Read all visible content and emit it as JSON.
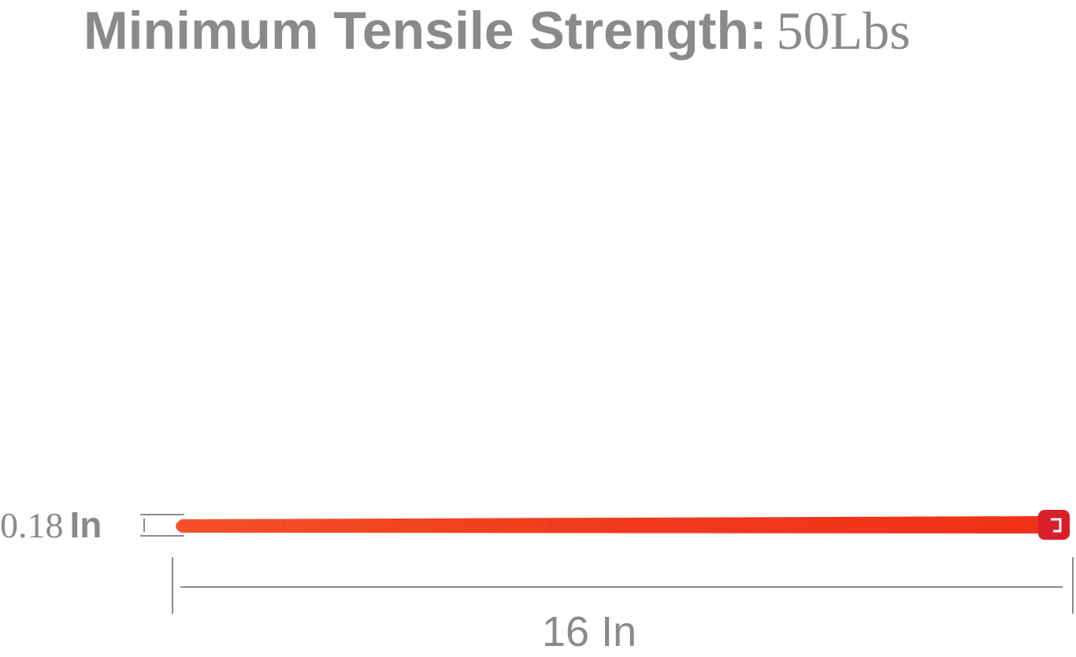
{
  "title": {
    "label": "Minimum Tensile Strength:",
    "value": "50Lbs"
  },
  "width_dimension": {
    "number": "0.18",
    "unit": "In"
  },
  "length_dimension": {
    "label": "16 In"
  },
  "colors": {
    "tie": "#f23a1a",
    "tie_head": "#d9202a",
    "text": "#8a8a8a",
    "dimension_lines": "#8c8c8c"
  }
}
